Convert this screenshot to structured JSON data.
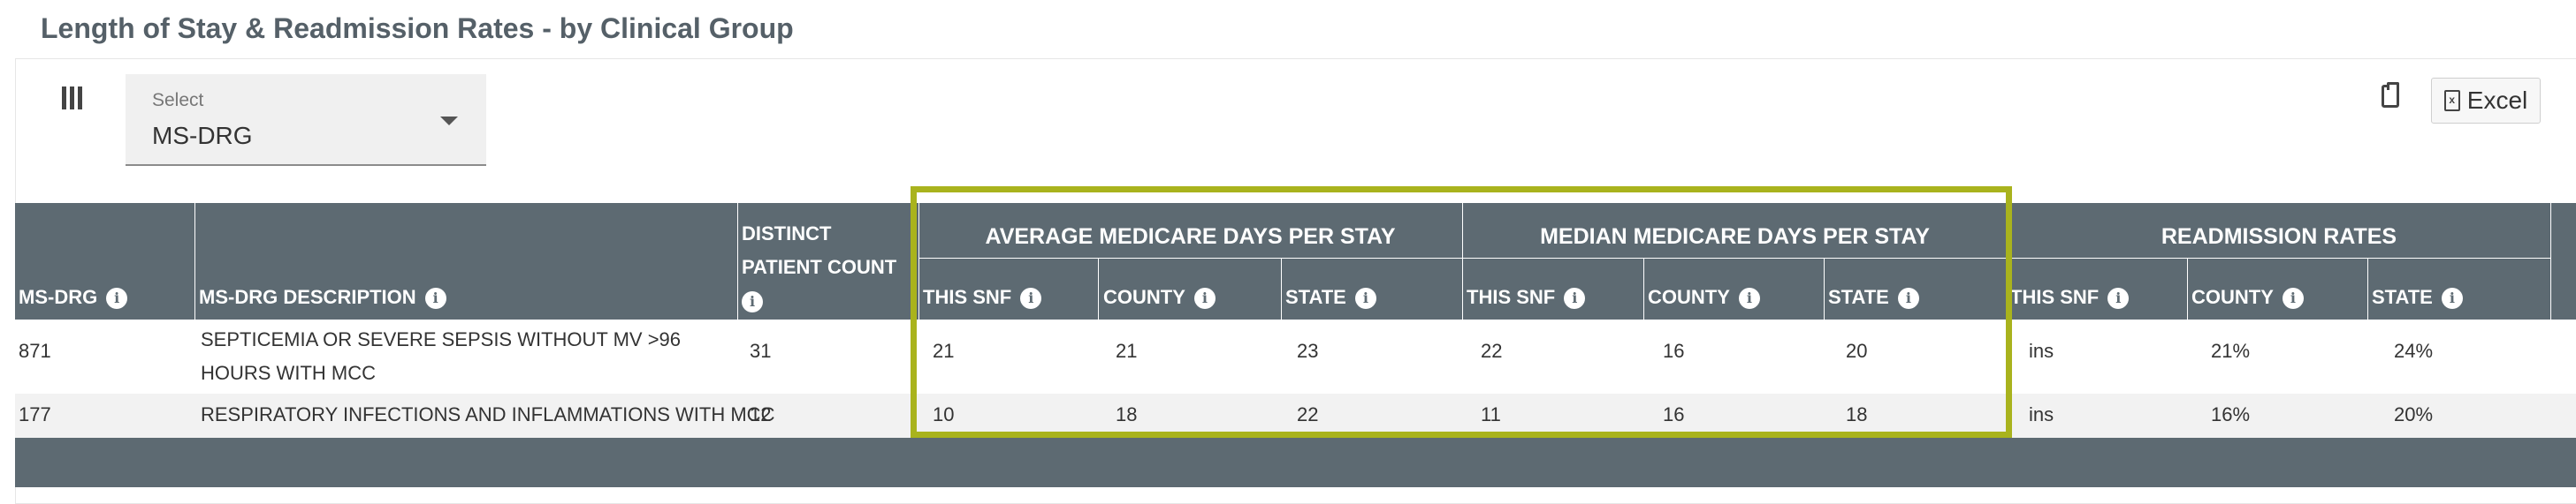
{
  "title": "Length of Stay & Readmission Rates - by Clinical Group",
  "toolbar": {
    "columns_icon": "columns-icon",
    "select_label": "Select",
    "select_value": "MS-DRG",
    "clipboard_icon": "clipboard-icon",
    "excel_label": "Excel",
    "excel_icon_glyph": "x"
  },
  "table": {
    "headers": {
      "ms_drg": "MS-DRG",
      "ms_drg_description": "MS-DRG DESCRIPTION",
      "distinct_line1": "DISTINCT",
      "distinct_line2": "PATIENT COUNT",
      "group_avg": "AVERAGE MEDICARE DAYS PER STAY",
      "group_median": "MEDIAN MEDICARE DAYS PER STAY",
      "group_readm": "READMISSION RATES",
      "this_snf": "THIS SNF",
      "county": "COUNTY",
      "state": "STATE",
      "info_glyph": "i"
    },
    "rows": [
      {
        "ms_drg": "871",
        "description": "SEPTICEMIA OR SEVERE SEPSIS WITHOUT MV >96 HOURS WITH MCC",
        "patient_count": "31",
        "avg_snf": "21",
        "avg_county": "21",
        "avg_state": "23",
        "med_snf": "22",
        "med_county": "16",
        "med_state": "20",
        "readm_snf": "ins",
        "readm_county": "21%",
        "readm_state": "24%"
      },
      {
        "ms_drg": "177",
        "description": "RESPIRATORY INFECTIONS AND INFLAMMATIONS WITH MCC",
        "patient_count": "12",
        "avg_snf": "10",
        "avg_county": "18",
        "avg_state": "22",
        "med_snf": "11",
        "med_county": "16",
        "med_state": "18",
        "readm_snf": "ins",
        "readm_county": "16%",
        "readm_state": "20%"
      }
    ]
  },
  "colors": {
    "header_bg": "#5d6a72",
    "highlight": "#a9b31d",
    "title": "#556068"
  }
}
